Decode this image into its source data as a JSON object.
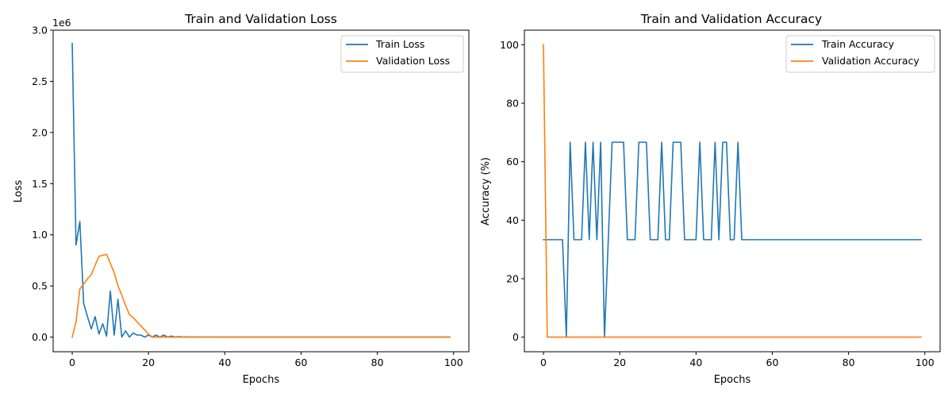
{
  "chart_data": [
    {
      "type": "line",
      "title": "Train and Validation Loss",
      "xlabel": "Epochs",
      "ylabel": "Loss",
      "y_offset_label": "1e6",
      "xlim": [
        -5,
        104
      ],
      "ylim": [
        -0.143,
        3.0
      ],
      "xticks": [
        0,
        20,
        40,
        60,
        80,
        100
      ],
      "xtick_labels": [
        "0",
        "20",
        "40",
        "60",
        "80",
        "100"
      ],
      "yticks": [
        0.0,
        0.5,
        1.0,
        1.5,
        2.0,
        2.5,
        3.0
      ],
      "ytick_labels": [
        "0.0",
        "0.5",
        "1.0",
        "1.5",
        "2.0",
        "2.5",
        "3.0"
      ],
      "legend_position": "top-right",
      "grid": false,
      "series": [
        {
          "name": "Train Loss",
          "color": "#1f77b4",
          "x": [
            0,
            1,
            2,
            3,
            4,
            5,
            6,
            7,
            8,
            9,
            10,
            11,
            12,
            13,
            14,
            15,
            16,
            17,
            18,
            19,
            20,
            21,
            22,
            23,
            24,
            25,
            26,
            27,
            28,
            29,
            30,
            31,
            32,
            33,
            34,
            35,
            36,
            37,
            38,
            39,
            40,
            45,
            50,
            55,
            60,
            65,
            70,
            75,
            80,
            85,
            90,
            95,
            99
          ],
          "y": [
            2.87,
            0.9,
            1.13,
            0.33,
            0.2,
            0.08,
            0.2,
            0.03,
            0.13,
            0.01,
            0.45,
            0.02,
            0.37,
            0.0,
            0.06,
            0.0,
            0.04,
            0.02,
            0.02,
            0.0,
            0.02,
            0.0,
            0.02,
            0.0,
            0.02,
            0.0,
            0.01,
            0.0,
            0.005,
            0.0,
            0.003,
            0.0,
            0.002,
            0.0,
            0.001,
            0.0,
            0.001,
            0.0,
            0.0,
            0.0,
            0.0,
            0.0,
            0.0,
            0.0,
            0.0,
            0.0,
            0.0,
            0.0,
            0.0,
            0.0,
            0.0,
            0.0,
            0.0
          ]
        },
        {
          "name": "Validation Loss",
          "color": "#ff7f0e",
          "x": [
            0,
            1,
            2,
            3,
            4,
            5,
            6,
            7,
            8,
            9,
            10,
            11,
            12,
            13,
            14,
            15,
            16,
            17,
            18,
            19,
            20,
            21,
            22,
            25,
            30,
            40,
            50,
            60,
            70,
            80,
            90,
            99
          ],
          "y": [
            0.0,
            0.15,
            0.47,
            0.52,
            0.57,
            0.61,
            0.7,
            0.79,
            0.8,
            0.81,
            0.72,
            0.63,
            0.5,
            0.41,
            0.31,
            0.22,
            0.19,
            0.15,
            0.11,
            0.07,
            0.03,
            0.0,
            0.0,
            0.0,
            0.0,
            0.0,
            0.0,
            0.0,
            0.0,
            0.0,
            0.0,
            0.0
          ]
        }
      ]
    },
    {
      "type": "line",
      "title": "Train and Validation Accuracy",
      "xlabel": "Epochs",
      "ylabel": "Accuracy (%)",
      "xlim": [
        -5,
        104
      ],
      "ylim": [
        -5,
        105
      ],
      "xticks": [
        0,
        20,
        40,
        60,
        80,
        100
      ],
      "xtick_labels": [
        "0",
        "20",
        "40",
        "60",
        "80",
        "100"
      ],
      "yticks": [
        0,
        20,
        40,
        60,
        80,
        100
      ],
      "ytick_labels": [
        "0",
        "20",
        "40",
        "60",
        "80",
        "100"
      ],
      "legend_position": "top-right",
      "grid": false,
      "series": [
        {
          "name": "Train Accuracy",
          "color": "#1f77b4",
          "x": [
            0,
            1,
            2,
            3,
            4,
            5,
            6,
            7,
            8,
            9,
            10,
            11,
            12,
            13,
            14,
            15,
            16,
            17,
            18,
            19,
            20,
            21,
            22,
            23,
            24,
            25,
            26,
            27,
            28,
            29,
            30,
            31,
            32,
            33,
            34,
            35,
            36,
            37,
            38,
            39,
            40,
            41,
            42,
            43,
            44,
            45,
            46,
            47,
            48,
            49,
            50,
            51,
            52,
            60,
            70,
            80,
            90,
            99
          ],
          "y": [
            33.33,
            33.33,
            33.33,
            33.33,
            33.33,
            33.33,
            0,
            66.67,
            33.33,
            33.33,
            33.33,
            66.67,
            33.33,
            66.67,
            33.33,
            66.67,
            0,
            33.33,
            66.67,
            66.67,
            66.67,
            66.67,
            33.33,
            33.33,
            33.33,
            66.67,
            66.67,
            66.67,
            33.33,
            33.33,
            33.33,
            66.67,
            33.33,
            33.33,
            66.67,
            66.67,
            66.67,
            33.33,
            33.33,
            33.33,
            33.33,
            66.67,
            33.33,
            33.33,
            33.33,
            66.67,
            33.33,
            66.67,
            66.67,
            33.33,
            33.33,
            66.67,
            33.33,
            33.33,
            33.33,
            33.33,
            33.33,
            33.33
          ]
        },
        {
          "name": "Validation Accuracy",
          "color": "#ff7f0e",
          "x": [
            0,
            1,
            10,
            20,
            30,
            40,
            50,
            60,
            70,
            80,
            90,
            99
          ],
          "y": [
            100,
            0,
            0,
            0,
            0,
            0,
            0,
            0,
            0,
            0,
            0,
            0
          ]
        }
      ]
    }
  ]
}
